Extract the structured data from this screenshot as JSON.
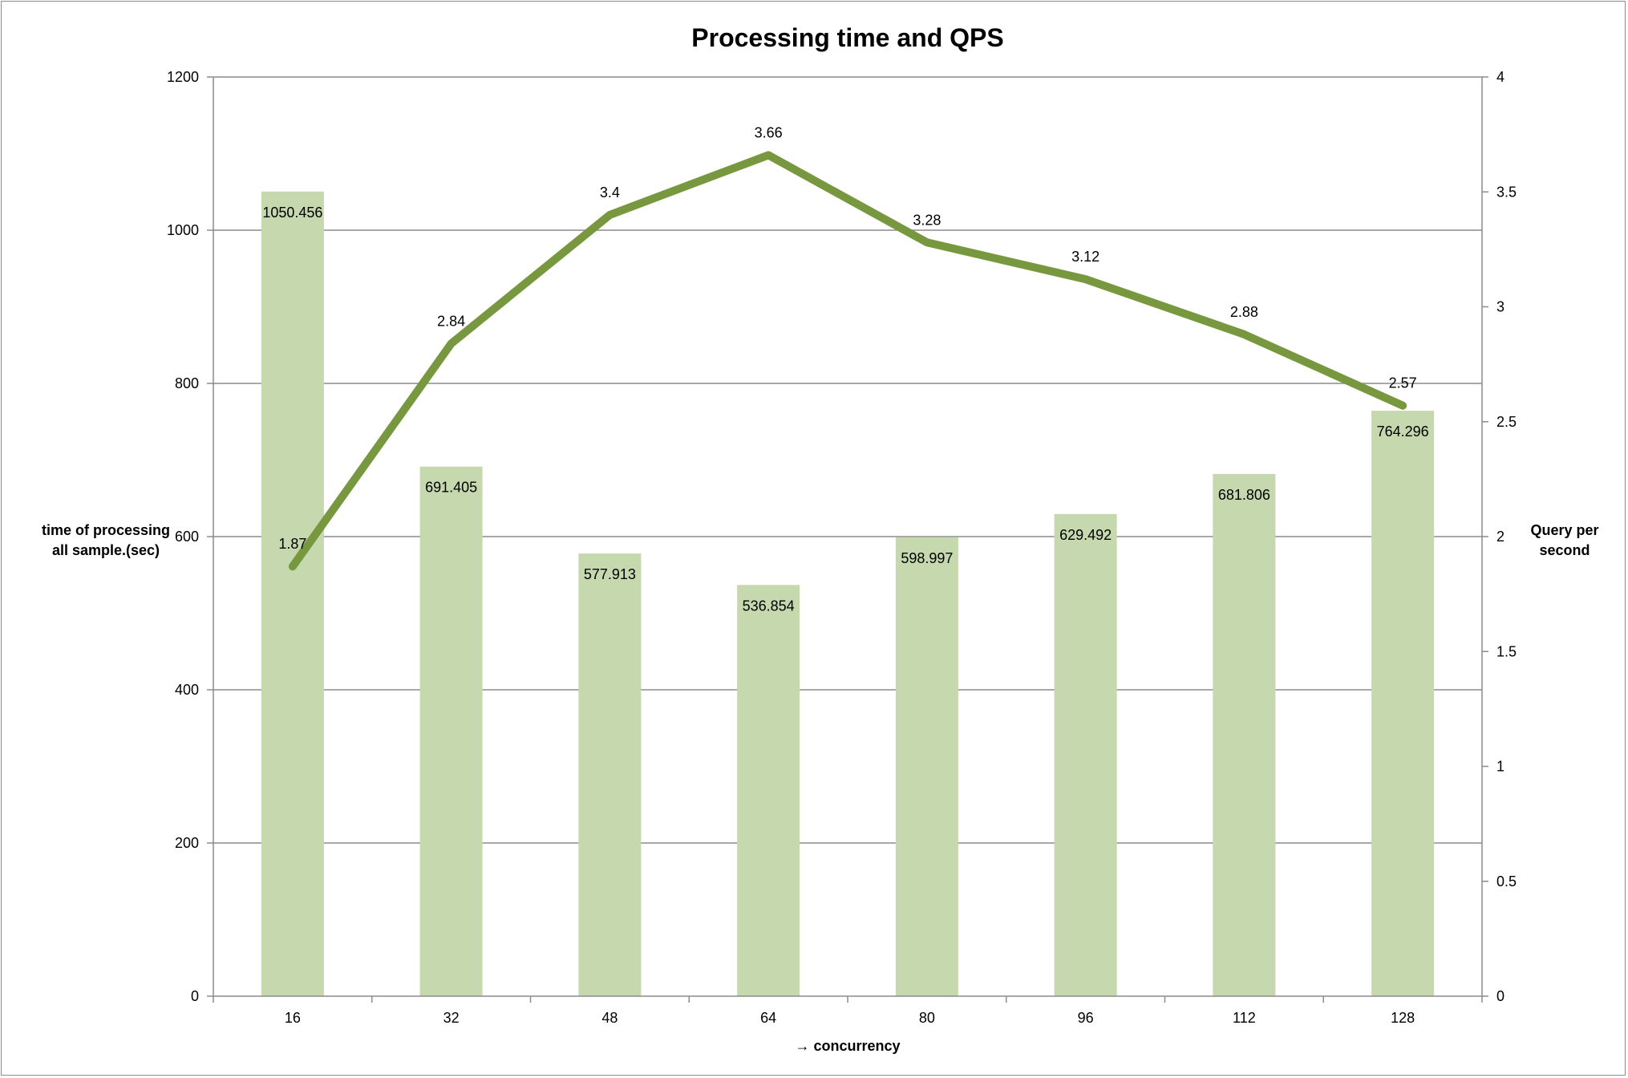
{
  "chart_data": {
    "type": "bar",
    "title": "Processing time and QPS",
    "xlabel": "→ concurrency",
    "ylabel": [
      "time of processing",
      "all sample.(sec)"
    ],
    "y2label": [
      "Query per",
      "second"
    ],
    "categories": [
      "16",
      "32",
      "48",
      "64",
      "80",
      "96",
      "112",
      "128"
    ],
    "ylim": [
      0,
      1200
    ],
    "yticks": [
      "0",
      "200",
      "400",
      "600",
      "800",
      "1000",
      "1200"
    ],
    "y2lim": [
      0,
      4
    ],
    "y2ticks": [
      "0",
      "0.5",
      "1",
      "1.5",
      "2",
      "2.5",
      "3",
      "3.5",
      "4"
    ],
    "grid": true,
    "legend": "none",
    "series": [
      {
        "type": "bar",
        "axis": "left",
        "values": [
          1050.456,
          691.405,
          577.913,
          536.854,
          598.997,
          629.492,
          681.806,
          764.296
        ],
        "labels": [
          "1050.456",
          "691.405",
          "577.913",
          "536.854",
          "598.997",
          "629.492",
          "681.806",
          "764.296"
        ],
        "color": "#c6d8ae"
      },
      {
        "type": "line",
        "axis": "right",
        "values": [
          1.87,
          2.84,
          3.4,
          3.66,
          3.28,
          3.12,
          2.88,
          2.57
        ],
        "labels": [
          "1.87",
          "2.84",
          "3.4",
          "3.66",
          "3.28",
          "3.12",
          "2.88",
          "2.57"
        ],
        "color": "#77983f"
      }
    ]
  }
}
